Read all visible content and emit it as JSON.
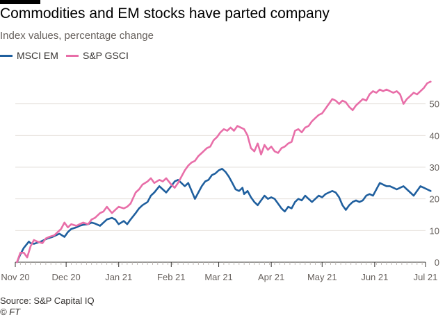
{
  "header": {
    "title": "Commodities and EM stocks have parted company",
    "subtitle": "Index values, percentage change"
  },
  "footer": {
    "source": "Source: S&P Capital IQ",
    "credit": "© FT"
  },
  "colors": {
    "msci": "#1f5f9e",
    "gsci": "#e86ea8",
    "grid": "#e6e0dc",
    "axis": "#33302e",
    "text": "#66605c"
  },
  "chart_data": {
    "type": "line",
    "title": "Commodities and EM stocks have parted company",
    "subtitle": "Index values, percentage change",
    "xlabel": "",
    "ylabel": "",
    "x_ticks": [
      "Nov 20",
      "Dec 20",
      "Jan 21",
      "Feb 21",
      "Mar 21",
      "Apr 21",
      "May 21",
      "Jun 21",
      "Jul 21"
    ],
    "x_range": [
      "2020-11-01",
      "2021-07-01"
    ],
    "ylim": [
      0,
      60
    ],
    "y_ticks": [
      0,
      10,
      20,
      30,
      40,
      50
    ],
    "y_axis_side": "right",
    "grid": true,
    "legend_position": "top-left",
    "series": [
      {
        "name": "MSCI EM",
        "color": "#1f5f9e",
        "points": [
          [
            "2020-11-02",
            0.0
          ],
          [
            "2020-11-04",
            2.5
          ],
          [
            "2020-11-06",
            4.5
          ],
          [
            "2020-11-09",
            6.5
          ],
          [
            "2020-11-10",
            6.0
          ],
          [
            "2020-11-12",
            5.8
          ],
          [
            "2020-11-16",
            6.5
          ],
          [
            "2020-11-18",
            7.0
          ],
          [
            "2020-11-20",
            7.5
          ],
          [
            "2020-11-23",
            8.0
          ],
          [
            "2020-11-25",
            8.5
          ],
          [
            "2020-11-27",
            9.0
          ],
          [
            "2020-11-30",
            8.0
          ],
          [
            "2020-12-02",
            9.5
          ],
          [
            "2020-12-04",
            10.5
          ],
          [
            "2020-12-07",
            11.0
          ],
          [
            "2020-12-09",
            11.5
          ],
          [
            "2020-12-11",
            11.8
          ],
          [
            "2020-12-14",
            12.0
          ],
          [
            "2020-12-16",
            12.5
          ],
          [
            "2020-12-18",
            12.2
          ],
          [
            "2020-12-21",
            11.5
          ],
          [
            "2020-12-23",
            12.5
          ],
          [
            "2020-12-25",
            13.5
          ],
          [
            "2020-12-28",
            14.0
          ],
          [
            "2020-12-30",
            13.5
          ],
          [
            "2021-01-01",
            12.0
          ],
          [
            "2021-01-04",
            13.0
          ],
          [
            "2021-01-06",
            12.0
          ],
          [
            "2021-01-08",
            13.5
          ],
          [
            "2021-01-11",
            15.5
          ],
          [
            "2021-01-13",
            17.0
          ],
          [
            "2021-01-15",
            18.0
          ],
          [
            "2021-01-18",
            19.0
          ],
          [
            "2021-01-20",
            21.0
          ],
          [
            "2021-01-22",
            22.0
          ],
          [
            "2021-01-25",
            24.0
          ],
          [
            "2021-01-27",
            23.0
          ],
          [
            "2021-01-29",
            22.0
          ],
          [
            "2021-02-01",
            24.0
          ],
          [
            "2021-02-03",
            25.5
          ],
          [
            "2021-02-05",
            26.0
          ],
          [
            "2021-02-07",
            25.0
          ],
          [
            "2021-02-09",
            24.0
          ],
          [
            "2021-02-11",
            25.0
          ],
          [
            "2021-02-13",
            22.5
          ],
          [
            "2021-02-15",
            20.0
          ],
          [
            "2021-02-17",
            22.0
          ],
          [
            "2021-02-19",
            24.0
          ],
          [
            "2021-02-21",
            25.5
          ],
          [
            "2021-02-23",
            26.0
          ],
          [
            "2021-02-25",
            27.5
          ],
          [
            "2021-02-27",
            28.0
          ],
          [
            "2021-03-01",
            29.0
          ],
          [
            "2021-03-03",
            29.5
          ],
          [
            "2021-03-05",
            28.5
          ],
          [
            "2021-03-07",
            27.0
          ],
          [
            "2021-03-09",
            25.0
          ],
          [
            "2021-03-11",
            23.0
          ],
          [
            "2021-03-13",
            22.5
          ],
          [
            "2021-03-15",
            23.5
          ],
          [
            "2021-03-16",
            21.5
          ],
          [
            "2021-03-18",
            22.5
          ],
          [
            "2021-03-20",
            20.5
          ],
          [
            "2021-03-22",
            19.0
          ],
          [
            "2021-03-24",
            18.0
          ],
          [
            "2021-03-26",
            19.5
          ],
          [
            "2021-03-28",
            21.0
          ],
          [
            "2021-03-30",
            20.0
          ],
          [
            "2021-04-01",
            20.5
          ],
          [
            "2021-04-03",
            20.0
          ],
          [
            "2021-04-05",
            18.5
          ],
          [
            "2021-04-07",
            17.0
          ],
          [
            "2021-04-09",
            16.0
          ],
          [
            "2021-04-11",
            17.5
          ],
          [
            "2021-04-13",
            17.0
          ],
          [
            "2021-04-15",
            19.0
          ],
          [
            "2021-04-17",
            20.0
          ],
          [
            "2021-04-19",
            19.5
          ],
          [
            "2021-04-21",
            21.0
          ],
          [
            "2021-04-23",
            20.0
          ],
          [
            "2021-04-25",
            19.0
          ],
          [
            "2021-04-27",
            20.0
          ],
          [
            "2021-04-29",
            21.0
          ],
          [
            "2021-05-01",
            20.5
          ],
          [
            "2021-05-03",
            21.5
          ],
          [
            "2021-05-05",
            22.0
          ],
          [
            "2021-05-07",
            22.5
          ],
          [
            "2021-05-09",
            22.0
          ],
          [
            "2021-05-11",
            20.5
          ],
          [
            "2021-05-13",
            18.0
          ],
          [
            "2021-05-15",
            16.5
          ],
          [
            "2021-05-17",
            18.0
          ],
          [
            "2021-05-19",
            19.0
          ],
          [
            "2021-05-21",
            19.5
          ],
          [
            "2021-05-23",
            19.0
          ],
          [
            "2021-05-25",
            19.5
          ],
          [
            "2021-05-27",
            21.0
          ],
          [
            "2021-05-29",
            21.5
          ],
          [
            "2021-05-31",
            21.0
          ],
          [
            "2021-06-02",
            23.0
          ],
          [
            "2021-06-04",
            25.0
          ],
          [
            "2021-06-06",
            24.5
          ],
          [
            "2021-06-08",
            24.0
          ],
          [
            "2021-06-10",
            24.0
          ],
          [
            "2021-06-12",
            23.5
          ],
          [
            "2021-06-14",
            23.0
          ],
          [
            "2021-06-16",
            23.5
          ],
          [
            "2021-06-18",
            24.0
          ],
          [
            "2021-06-20",
            23.0
          ],
          [
            "2021-06-22",
            22.0
          ],
          [
            "2021-06-24",
            21.0
          ],
          [
            "2021-06-26",
            22.5
          ],
          [
            "2021-06-28",
            24.0
          ],
          [
            "2021-06-30",
            23.5
          ],
          [
            "2021-07-02",
            23.0
          ],
          [
            "2021-07-04",
            22.5
          ]
        ]
      },
      {
        "name": "S&P GSCI",
        "color": "#e86ea8",
        "points": [
          [
            "2020-11-02",
            0.0
          ],
          [
            "2020-11-04",
            3.0
          ],
          [
            "2020-11-06",
            3.0
          ],
          [
            "2020-11-08",
            1.5
          ],
          [
            "2020-11-10",
            5.0
          ],
          [
            "2020-11-12",
            7.0
          ],
          [
            "2020-11-14",
            6.5
          ],
          [
            "2020-11-17",
            6.0
          ],
          [
            "2020-11-19",
            7.5
          ],
          [
            "2020-11-21",
            8.0
          ],
          [
            "2020-11-24",
            8.5
          ],
          [
            "2020-11-26",
            9.5
          ],
          [
            "2020-11-28",
            10.5
          ],
          [
            "2020-11-30",
            12.5
          ],
          [
            "2020-12-02",
            11.0
          ],
          [
            "2020-12-04",
            12.0
          ],
          [
            "2020-12-07",
            11.5
          ],
          [
            "2020-12-09",
            12.0
          ],
          [
            "2020-12-11",
            12.5
          ],
          [
            "2020-12-14",
            12.0
          ],
          [
            "2020-12-16",
            13.5
          ],
          [
            "2020-12-18",
            14.0
          ],
          [
            "2020-12-21",
            15.5
          ],
          [
            "2020-12-23",
            16.0
          ],
          [
            "2020-12-25",
            17.5
          ],
          [
            "2020-12-28",
            15.5
          ],
          [
            "2020-12-30",
            16.5
          ],
          [
            "2021-01-01",
            17.5
          ],
          [
            "2021-01-04",
            17.0
          ],
          [
            "2021-01-06",
            17.5
          ],
          [
            "2021-01-08",
            18.5
          ],
          [
            "2021-01-11",
            22.0
          ],
          [
            "2021-01-13",
            23.0
          ],
          [
            "2021-01-15",
            24.5
          ],
          [
            "2021-01-18",
            25.5
          ],
          [
            "2021-01-20",
            26.5
          ],
          [
            "2021-01-22",
            25.0
          ],
          [
            "2021-01-25",
            26.0
          ],
          [
            "2021-01-27",
            25.5
          ],
          [
            "2021-01-29",
            26.5
          ],
          [
            "2021-02-01",
            24.5
          ],
          [
            "2021-02-03",
            23.5
          ],
          [
            "2021-02-05",
            25.0
          ],
          [
            "2021-02-07",
            27.0
          ],
          [
            "2021-02-09",
            29.0
          ],
          [
            "2021-02-11",
            30.5
          ],
          [
            "2021-02-13",
            31.5
          ],
          [
            "2021-02-15",
            32.0
          ],
          [
            "2021-02-17",
            33.5
          ],
          [
            "2021-02-19",
            34.5
          ],
          [
            "2021-02-22",
            36.0
          ],
          [
            "2021-02-24",
            36.5
          ],
          [
            "2021-02-26",
            38.5
          ],
          [
            "2021-02-28",
            39.5
          ],
          [
            "2021-03-02",
            41.0
          ],
          [
            "2021-03-04",
            42.0
          ],
          [
            "2021-03-06",
            41.5
          ],
          [
            "2021-03-08",
            42.5
          ],
          [
            "2021-03-10",
            41.5
          ],
          [
            "2021-03-12",
            43.0
          ],
          [
            "2021-03-14",
            42.5
          ],
          [
            "2021-03-16",
            42.0
          ],
          [
            "2021-03-18",
            40.0
          ],
          [
            "2021-03-20",
            36.0
          ],
          [
            "2021-03-22",
            35.0
          ],
          [
            "2021-03-24",
            37.5
          ],
          [
            "2021-03-26",
            34.0
          ],
          [
            "2021-03-28",
            37.0
          ],
          [
            "2021-03-30",
            35.5
          ],
          [
            "2021-04-01",
            36.5
          ],
          [
            "2021-04-03",
            35.0
          ],
          [
            "2021-04-05",
            34.5
          ],
          [
            "2021-04-07",
            36.0
          ],
          [
            "2021-04-09",
            36.5
          ],
          [
            "2021-04-11",
            37.5
          ],
          [
            "2021-04-13",
            38.0
          ],
          [
            "2021-04-15",
            41.5
          ],
          [
            "2021-04-17",
            42.0
          ],
          [
            "2021-04-19",
            41.0
          ],
          [
            "2021-04-21",
            42.5
          ],
          [
            "2021-04-23",
            43.0
          ],
          [
            "2021-04-25",
            44.5
          ],
          [
            "2021-04-27",
            45.5
          ],
          [
            "2021-04-29",
            46.5
          ],
          [
            "2021-05-01",
            47.0
          ],
          [
            "2021-05-03",
            48.5
          ],
          [
            "2021-05-05",
            50.0
          ],
          [
            "2021-05-07",
            51.5
          ],
          [
            "2021-05-09",
            51.0
          ],
          [
            "2021-05-11",
            50.0
          ],
          [
            "2021-05-13",
            51.0
          ],
          [
            "2021-05-15",
            50.5
          ],
          [
            "2021-05-17",
            49.0
          ],
          [
            "2021-05-19",
            48.0
          ],
          [
            "2021-05-21",
            49.5
          ],
          [
            "2021-05-23",
            50.5
          ],
          [
            "2021-05-25",
            51.5
          ],
          [
            "2021-05-27",
            51.0
          ],
          [
            "2021-05-29",
            53.0
          ],
          [
            "2021-05-31",
            54.0
          ],
          [
            "2021-06-02",
            53.5
          ],
          [
            "2021-06-04",
            54.5
          ],
          [
            "2021-06-06",
            54.0
          ],
          [
            "2021-06-08",
            54.5
          ],
          [
            "2021-06-10",
            54.0
          ],
          [
            "2021-06-12",
            53.5
          ],
          [
            "2021-06-14",
            54.0
          ],
          [
            "2021-06-16",
            53.0
          ],
          [
            "2021-06-18",
            50.0
          ],
          [
            "2021-06-20",
            51.5
          ],
          [
            "2021-06-22",
            52.5
          ],
          [
            "2021-06-24",
            53.5
          ],
          [
            "2021-06-26",
            53.0
          ],
          [
            "2021-06-28",
            54.0
          ],
          [
            "2021-06-30",
            55.0
          ],
          [
            "2021-07-02",
            56.5
          ],
          [
            "2021-07-04",
            57.0
          ]
        ]
      }
    ]
  }
}
